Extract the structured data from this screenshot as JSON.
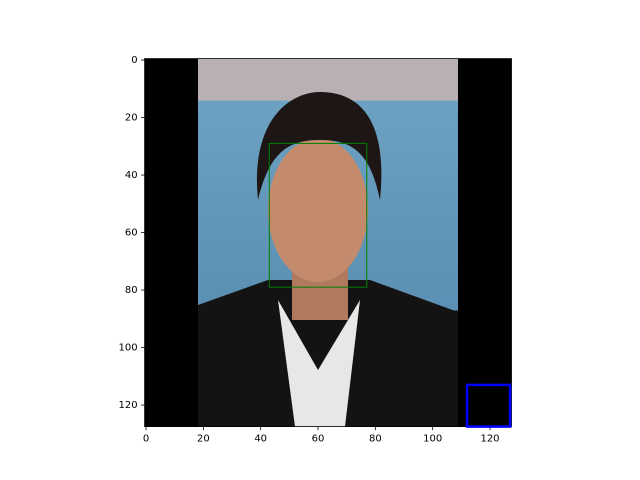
{
  "chart_data": {
    "type": "image",
    "xlim": [
      -0.5,
      127.5
    ],
    "ylim": [
      127.5,
      -0.5
    ],
    "xticks": [
      0,
      20,
      40,
      60,
      80,
      100,
      120
    ],
    "yticks": [
      0,
      20,
      40,
      60,
      80,
      100,
      120
    ],
    "boxes": [
      {
        "color": "#008000",
        "x": [
          43,
          77
        ],
        "y": [
          29,
          79
        ]
      },
      {
        "color": "#0000ff",
        "x": [
          112,
          127
        ],
        "y": [
          113,
          127.5
        ]
      }
    ]
  }
}
